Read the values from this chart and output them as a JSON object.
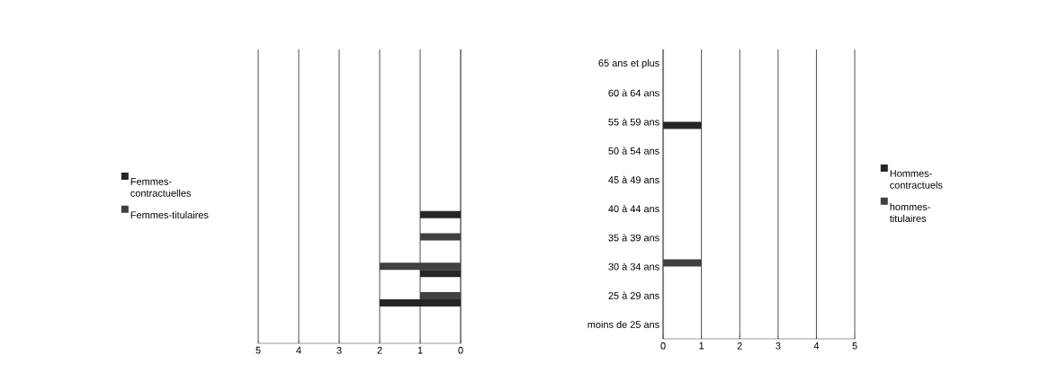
{
  "chart_data": [
    {
      "type": "bar",
      "orientation": "horizontal",
      "categories": [
        null,
        null,
        null,
        null,
        null,
        null,
        null,
        null,
        null,
        null
      ],
      "series": [
        {
          "name": "Femmes-contractuelles",
          "color": "#262626",
          "values": [
            0,
            0,
            0,
            0,
            0,
            1,
            0,
            1,
            2,
            0
          ]
        },
        {
          "name": "Femmes-titulaires",
          "color": "#404040",
          "values": [
            0,
            0,
            0,
            0,
            0,
            0,
            1,
            2,
            1,
            0
          ]
        }
      ],
      "xlim": [
        5,
        0
      ],
      "xticks": [
        0,
        1,
        2,
        3,
        4,
        5
      ],
      "grid": "x",
      "legend": "left"
    },
    {
      "type": "bar",
      "orientation": "horizontal",
      "categories": [
        "65 ans et plus",
        "60 à 64 ans",
        "55 à 59 ans",
        "50 à 54 ans",
        "45 à 49 ans",
        "40 à 44 ans",
        "35 à 39 ans",
        "30 à 34 ans",
        "25 à 29 ans",
        "moins de 25 ans"
      ],
      "series": [
        {
          "name": "Hommes-contractuels",
          "color": "#262626",
          "values": [
            0,
            0,
            1,
            0,
            0,
            0,
            0,
            0,
            0,
            0
          ]
        },
        {
          "name": "hommes-titulaires",
          "color": "#404040",
          "values": [
            0,
            0,
            0,
            0,
            0,
            0,
            0,
            1,
            0,
            0
          ]
        }
      ],
      "xlim": [
        0,
        5
      ],
      "xticks": [
        0,
        1,
        2,
        3,
        4,
        5
      ],
      "grid": "x",
      "legend": "right"
    }
  ]
}
